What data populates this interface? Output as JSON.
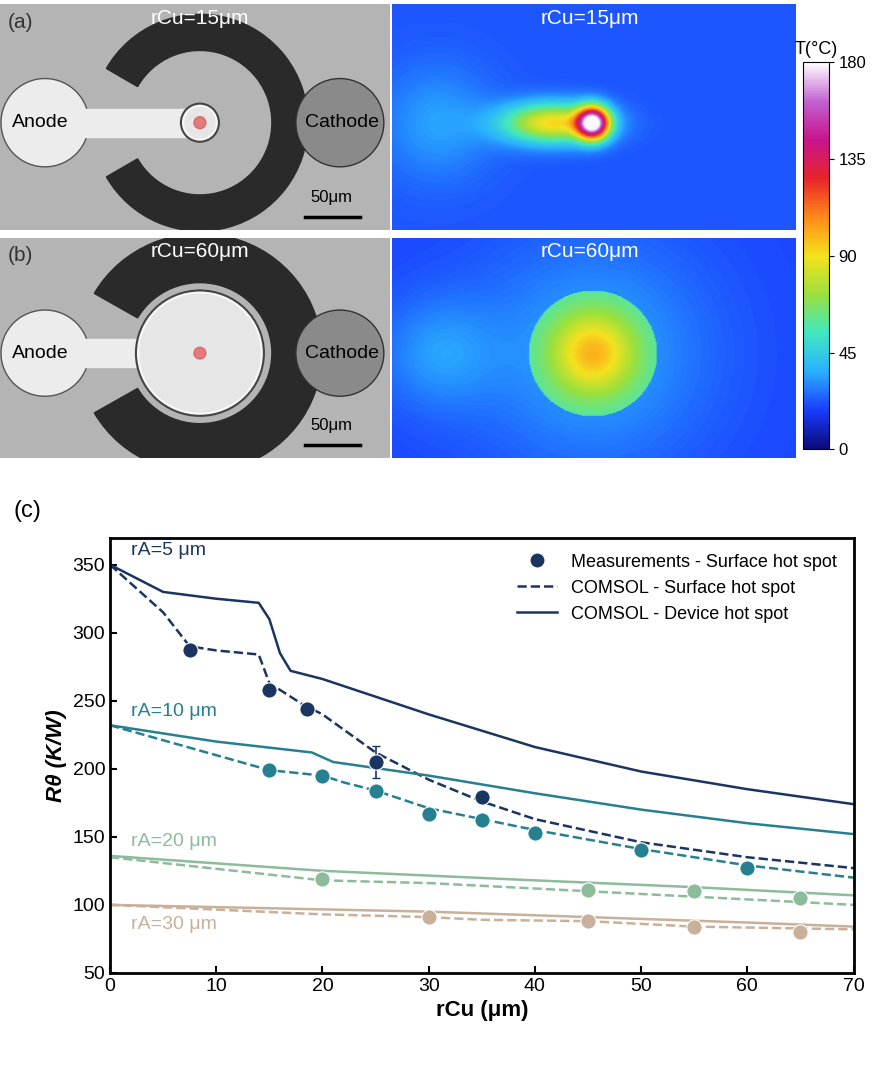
{
  "panel_a": {
    "label": "(a)",
    "title": "rCu=15μm",
    "anode": "Anode",
    "cathode": "Cathode",
    "scale_bar": "50μm"
  },
  "panel_b": {
    "label": "(b)",
    "title": "rCu=60μm",
    "anode": "Anode",
    "cathode": "Cathode",
    "scale_bar": "50μm"
  },
  "colorbar": {
    "title": "T(°C)",
    "range": [
      0,
      180
    ],
    "ticks": [
      0,
      45,
      90,
      135,
      180
    ]
  },
  "chart_data": {
    "type": "line",
    "panel_label": "(c)",
    "x_label": "rCu (μm)",
    "y_label": "Rθ (K/W)",
    "xlim": [
      0,
      70
    ],
    "xticks": [
      0,
      10,
      20,
      30,
      40,
      50,
      60,
      70
    ],
    "ylim": [
      50,
      370
    ],
    "yticks": [
      50,
      100,
      150,
      200,
      250,
      300,
      350
    ],
    "legend": "upper right",
    "groups": [
      {
        "label": "rA=5 μm",
        "color": "#1b3561"
      },
      {
        "label": "rA=10 μm",
        "color": "#26808f"
      },
      {
        "label": "rA=20 μm",
        "color": "#8cbc9a"
      },
      {
        "label": "rA=30 μm",
        "color": "#c9b09a"
      }
    ],
    "series": [
      {
        "name": "Measurements - Surface hot spot",
        "type": "scatter",
        "marker": "o",
        "data": [
          {
            "x": [
              7.5,
              15,
              18.5,
              25,
              35
            ],
            "values": [
              287,
              258,
              244,
              205,
              179
            ],
            "errors": [
              0,
              0,
              0,
              12,
              0
            ]
          },
          {
            "x": [
              15,
              20,
              25,
              30,
              35,
              40,
              50,
              60
            ],
            "values": [
              199,
              195,
              184,
              167,
              162,
              153,
              140,
              127
            ],
            "errors": [
              0,
              0,
              0,
              0,
              0,
              0,
              0,
              0
            ]
          },
          {
            "x": [
              20,
              45,
              55,
              65
            ],
            "values": [
              119,
              111,
              110,
              105
            ],
            "errors": [
              0,
              0,
              0,
              0
            ]
          },
          {
            "x": [
              30,
              45,
              55,
              65
            ],
            "values": [
              91,
              88,
              84,
              80
            ],
            "errors": [
              0,
              0,
              0,
              0
            ]
          }
        ]
      },
      {
        "name": "COMSOL - Surface hot spot",
        "type": "line",
        "line_style": "dashed",
        "data": [
          {
            "x": [
              0,
              5,
              7.5,
              10,
              14,
              15,
              18,
              20,
              25,
              30,
              35,
              40,
              50,
              60,
              70
            ],
            "values": [
              350,
              315,
              290,
              287,
              284,
              263,
              248,
              240,
              212,
              192,
              176,
              163,
              146,
              135,
              127
            ]
          },
          {
            "x": [
              0,
              5,
              10,
              15,
              20,
              22,
              25,
              30,
              40,
              50,
              60,
              70
            ],
            "values": [
              232,
              221,
              210,
              199,
              195,
              190,
              184,
              171,
              155,
              141,
              129,
              120
            ]
          },
          {
            "x": [
              0,
              20,
              30,
              45,
              55,
              70
            ],
            "values": [
              135,
              118,
              116,
              110,
              106,
              100
            ]
          },
          {
            "x": [
              0,
              20,
              30,
              35,
              45,
              55,
              70
            ],
            "values": [
              100,
              93,
              91,
              89,
              88,
              84,
              82
            ]
          }
        ]
      },
      {
        "name": "COMSOL - Device hot spot",
        "type": "line",
        "line_style": "solid",
        "data": [
          {
            "x": [
              0,
              5,
              10,
              14,
              15,
              16,
              17,
              20,
              30,
              40,
              50,
              60,
              70
            ],
            "values": [
              350,
              330,
              325,
              322,
              310,
              285,
              272,
              266,
              240,
              216,
              198,
              185,
              174
            ]
          },
          {
            "x": [
              0,
              10,
              19,
              21,
              30,
              40,
              50,
              60,
              70
            ],
            "values": [
              232,
              220,
              212,
              205,
              195,
              182,
              170,
              160,
              152
            ]
          },
          {
            "x": [
              0,
              20,
              40,
              55,
              70
            ],
            "values": [
              136,
              125,
              118,
              113,
              107
            ]
          },
          {
            "x": [
              0,
              30,
              45,
              60,
              70
            ],
            "values": [
              100,
              95,
              91,
              87,
              84
            ]
          }
        ]
      }
    ]
  }
}
